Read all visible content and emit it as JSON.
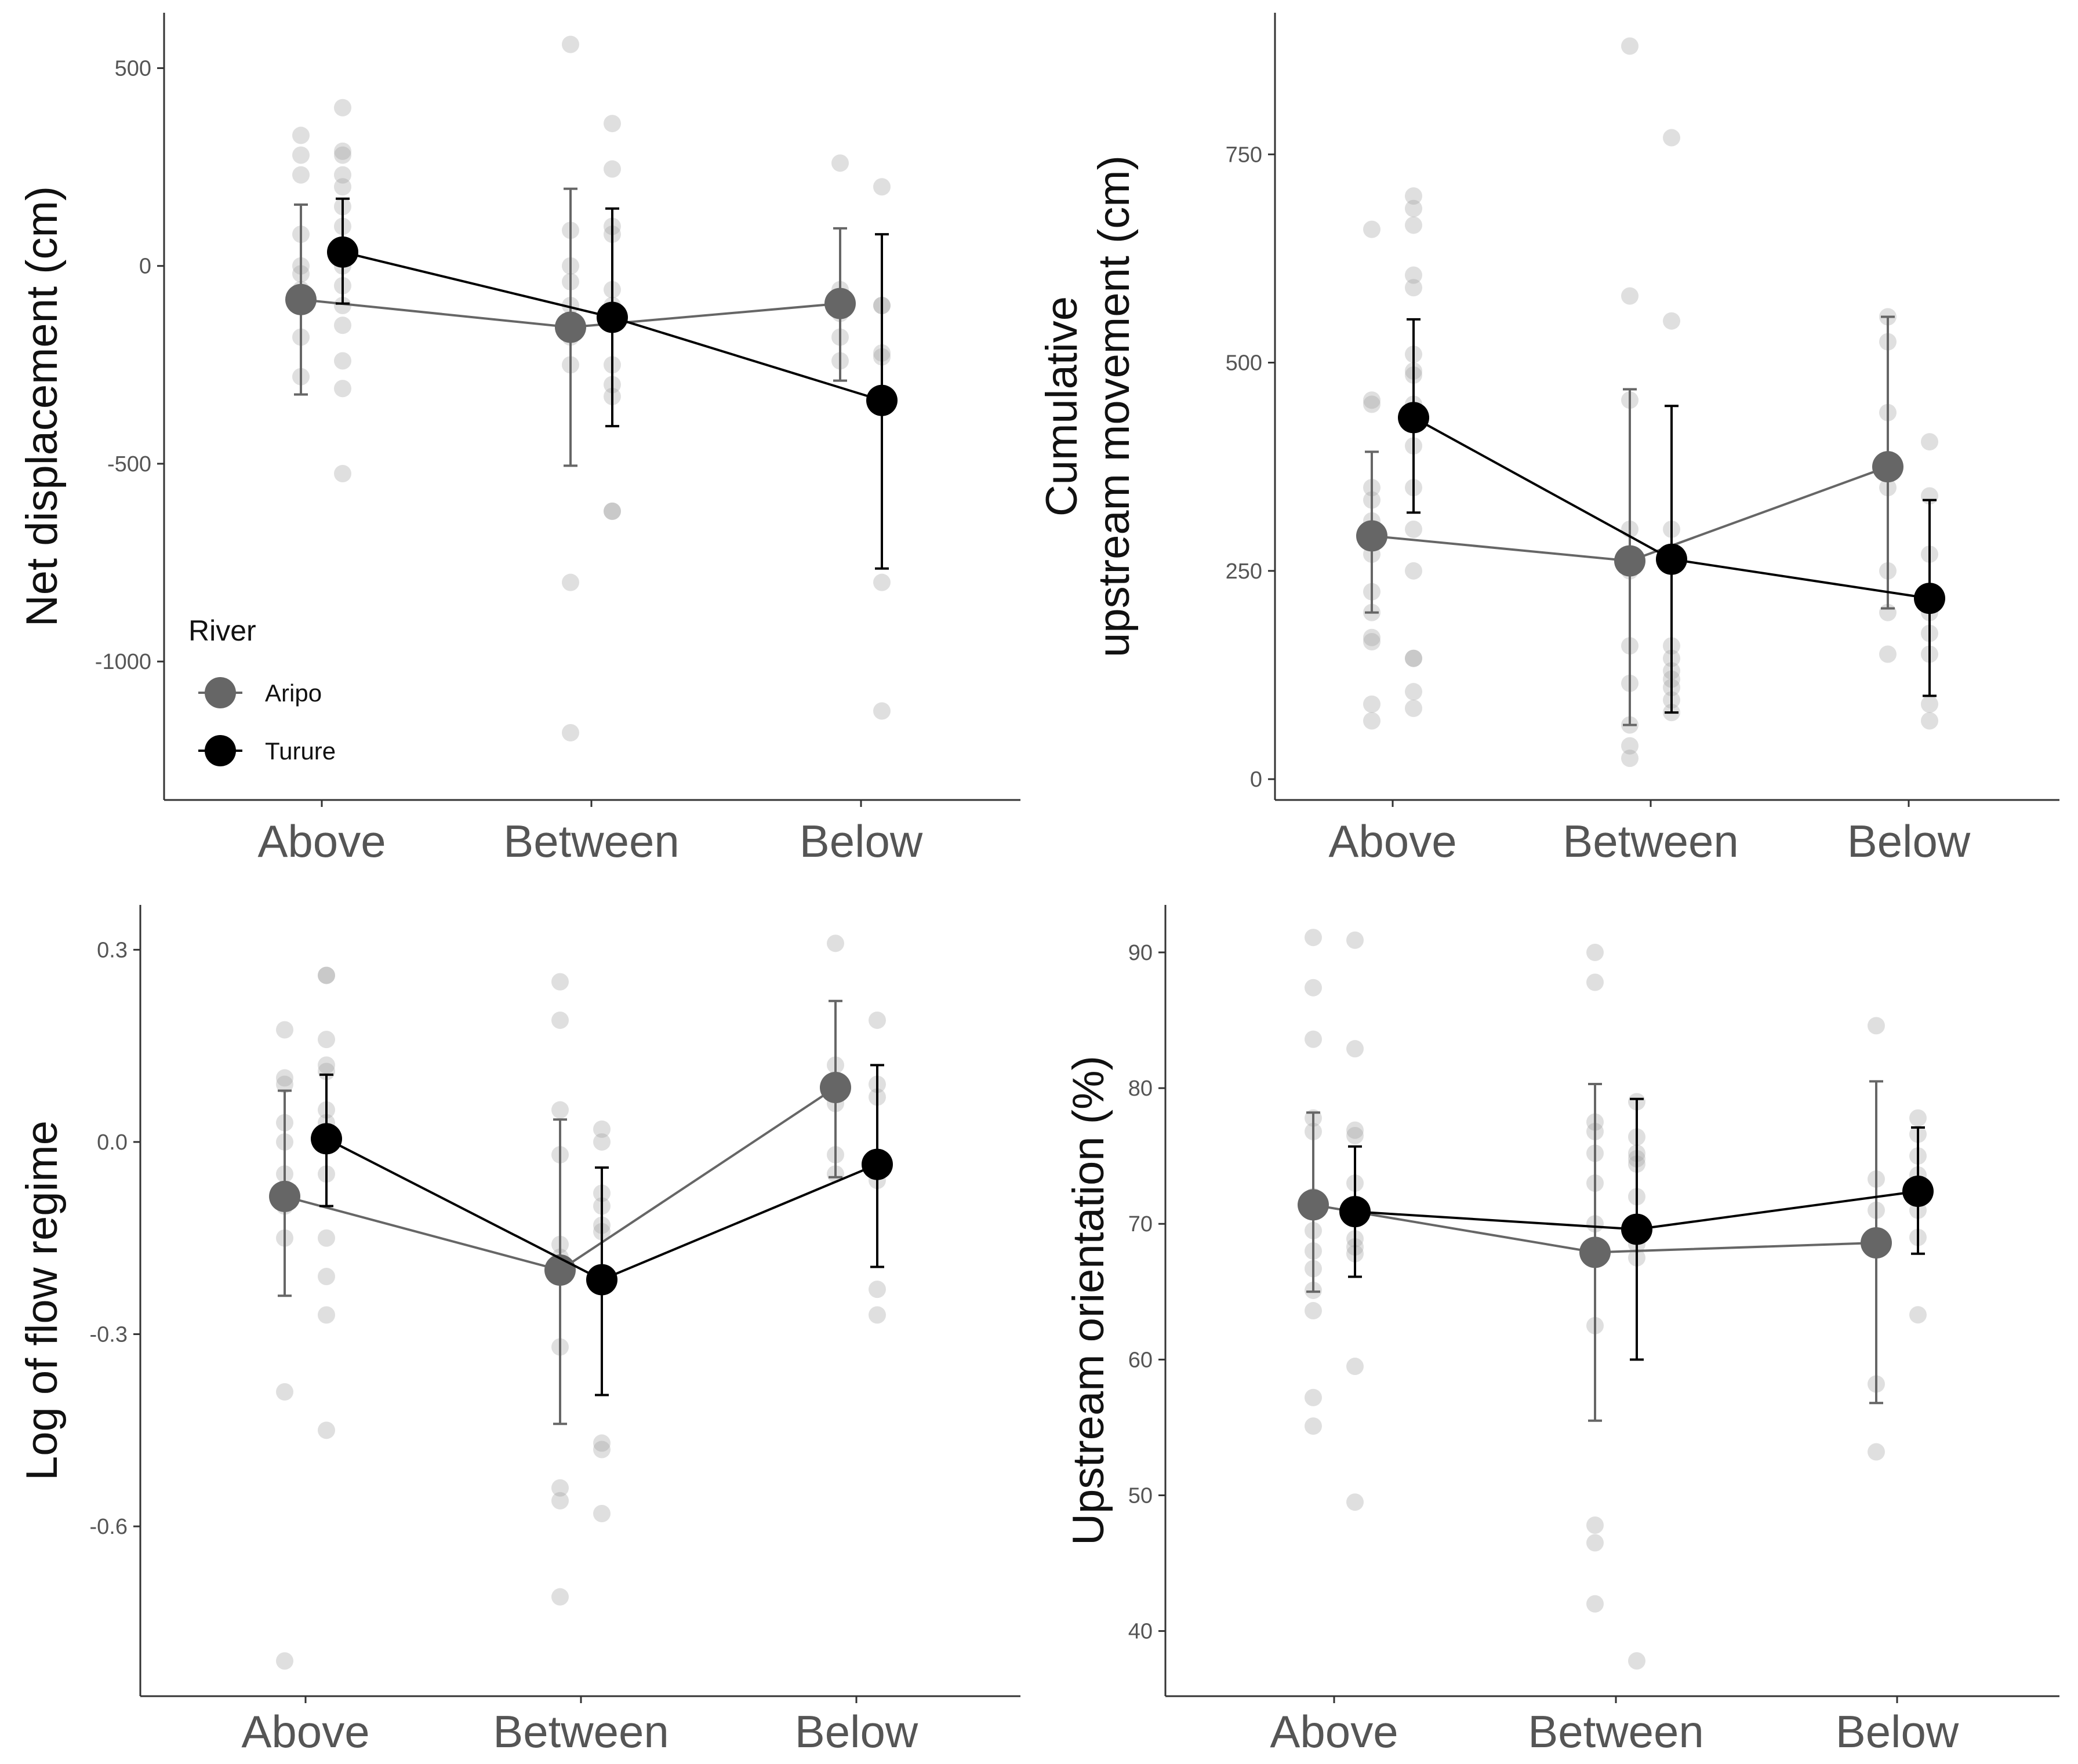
{
  "colors": {
    "aripo": "#666666",
    "turure": "#000000",
    "raw": "#9a9a9a",
    "axis": "#333333"
  },
  "legend": {
    "title": "River",
    "items": [
      {
        "label": "Aripo",
        "color": "#666666"
      },
      {
        "label": "Turure",
        "color": "#000000"
      }
    ]
  },
  "chart_data": [
    {
      "type": "scatter",
      "title": "",
      "ylabel": [
        "Net displacement (cm)"
      ],
      "xlabel": "",
      "categories": [
        "Above",
        "Between",
        "Below"
      ],
      "ylim": [
        -1350,
        640
      ],
      "yticks": [
        -1000,
        -500,
        0,
        500
      ],
      "ytick_labels": [
        "-1000",
        "-500",
        "0",
        "500"
      ],
      "legend": true,
      "series": [
        {
          "name": "Aripo",
          "means": [
            -85,
            -155,
            -95
          ],
          "lower": [
            -325,
            -505,
            -290
          ],
          "upper": [
            155,
            195,
            95
          ],
          "points": [
            [
              330,
              280,
              230,
              80,
              0,
              -20,
              -60,
              -100,
              -180,
              -280
            ],
            [
              560,
              90,
              0,
              -40,
              -100,
              -180,
              -250,
              -800,
              -1180
            ],
            [
              260,
              -60,
              -120,
              -180,
              -240
            ]
          ]
        },
        {
          "name": "Turure",
          "means": [
            35,
            -130,
            -340
          ],
          "lower": [
            -95,
            -405,
            -765
          ],
          "upper": [
            170,
            145,
            80
          ],
          "points": [
            [
              400,
              290,
              280,
              230,
              200,
              150,
              100,
              50,
              0,
              -50,
              -100,
              -150,
              -240,
              -310,
              -525
            ],
            [
              360,
              245,
              100,
              80,
              -60,
              -100,
              -250,
              -300,
              -330,
              -620,
              -620
            ],
            [
              200,
              -100,
              -100,
              -220,
              -230,
              -800,
              -1125
            ]
          ]
        }
      ]
    },
    {
      "type": "scatter",
      "title": "",
      "ylabel": [
        "Cumulative",
        "upstream movement (cm)"
      ],
      "xlabel": "",
      "categories": [
        "Above",
        "Between",
        "Below"
      ],
      "ylim": [
        -25,
        920
      ],
      "yticks": [
        0,
        250,
        500,
        750
      ],
      "ytick_labels": [
        "0",
        "250",
        "500",
        "750"
      ],
      "legend": false,
      "series": [
        {
          "name": "Aripo",
          "means": [
            292,
            262,
            375
          ],
          "lower": [
            200,
            65,
            205
          ],
          "upper": [
            393,
            468,
            555
          ],
          "points": [
            [
              660,
              455,
              450,
              350,
              335,
              310,
              300,
              270,
              225,
              200,
              170,
              165,
              90,
              70
            ],
            [
              880,
              580,
              455,
              300,
              250,
              160,
              115,
              65,
              40,
              25
            ],
            [
              555,
              525,
              440,
              350,
              250,
              200,
              150
            ]
          ]
        },
        {
          "name": "Turure",
          "means": [
            434,
            264,
            217
          ],
          "lower": [
            320,
            80,
            100
          ],
          "upper": [
            552,
            448,
            335
          ],
          "points": [
            [
              700,
              685,
              665,
              605,
              590,
              510,
              490,
              485,
              450,
              400,
              350,
              300,
              250,
              145,
              145,
              105,
              85
            ],
            [
              770,
              550,
              300,
              160,
              145,
              130,
              120,
              110,
              95,
              80
            ],
            [
              405,
              340,
              270,
              200,
              175,
              150,
              90,
              70
            ]
          ]
        }
      ]
    },
    {
      "type": "scatter",
      "title": "",
      "ylabel": [
        "Log of flow regime"
      ],
      "xlabel": "",
      "categories": [
        "Above",
        "Between",
        "Below"
      ],
      "ylim": [
        -0.865,
        0.37
      ],
      "yticks": [
        -0.6,
        -0.3,
        0.0,
        0.3
      ],
      "ytick_labels": [
        "-0.6",
        "-0.3",
        "0.0",
        "0.3"
      ],
      "legend": false,
      "series": [
        {
          "name": "Aripo",
          "means": [
            -0.085,
            -0.2,
            0.085
          ],
          "lower": [
            -0.24,
            -0.44,
            -0.055
          ],
          "upper": [
            0.08,
            0.035,
            0.22
          ],
          "points": [
            [
              0.175,
              0.1,
              0.09,
              0.03,
              0.0,
              -0.05,
              -0.1,
              -0.15,
              -0.39,
              -0.81
            ],
            [
              0.25,
              0.19,
              0.05,
              -0.02,
              -0.16,
              -0.18,
              -0.32,
              -0.54,
              -0.56,
              -0.71
            ],
            [
              0.31,
              0.12,
              0.06,
              -0.02,
              -0.05
            ]
          ]
        },
        {
          "name": "Turure",
          "means": [
            0.005,
            -0.215,
            -0.035
          ],
          "lower": [
            -0.1,
            -0.395,
            -0.195
          ],
          "upper": [
            0.105,
            -0.04,
            0.12
          ],
          "points": [
            [
              0.26,
              0.26,
              0.16,
              0.12,
              0.11,
              0.05,
              0.03,
              0.0,
              -0.05,
              -0.15,
              -0.21,
              -0.27,
              -0.45
            ],
            [
              0.02,
              0.0,
              -0.08,
              -0.1,
              -0.13,
              -0.14,
              -0.22,
              -0.47,
              -0.48,
              -0.58
            ],
            [
              0.19,
              0.09,
              0.07,
              -0.06,
              -0.23,
              -0.27
            ]
          ]
        }
      ]
    },
    {
      "type": "scatter",
      "title": "",
      "ylabel": [
        "Upstream orientation (%)"
      ],
      "xlabel": "",
      "categories": [
        "Above",
        "Between",
        "Below"
      ],
      "ylim": [
        35.2,
        93.5
      ],
      "yticks": [
        40,
        50,
        60,
        70,
        80,
        90
      ],
      "ytick_labels": [
        "40",
        "50",
        "60",
        "70",
        "80",
        "90"
      ],
      "legend": false,
      "series": [
        {
          "name": "Aripo",
          "means": [
            71.4,
            67.9,
            68.6
          ],
          "lower": [
            65.0,
            55.5,
            56.8
          ],
          "upper": [
            78.2,
            80.3,
            80.5
          ],
          "points": [
            [
              91.1,
              87.4,
              83.6,
              77.8,
              76.8,
              72.0,
              69.5,
              68.0,
              66.7,
              65.1,
              63.6,
              57.2,
              55.1
            ],
            [
              90.0,
              87.8,
              77.5,
              76.8,
              75.2,
              73.0,
              70.0,
              67.5,
              62.5,
              47.8,
              46.5,
              42.0
            ],
            [
              84.6,
              73.3,
              71.0,
              58.2,
              53.2
            ]
          ]
        },
        {
          "name": "Turure",
          "means": [
            70.9,
            69.6,
            72.4
          ],
          "lower": [
            66.1,
            60.0,
            67.8
          ],
          "upper": [
            75.7,
            79.2,
            77.1
          ],
          "points": [
            [
              90.9,
              82.9,
              76.9,
              76.5,
              73.0,
              71.0,
              68.9,
              68.3,
              67.8,
              59.5,
              49.5
            ],
            [
              79.0,
              76.4,
              75.2,
              74.8,
              74.4,
              72.0,
              68.5,
              67.5,
              37.8
            ],
            [
              77.8,
              76.6,
              75.0,
              73.6,
              71.0,
              69.0,
              63.3
            ]
          ]
        }
      ]
    }
  ]
}
